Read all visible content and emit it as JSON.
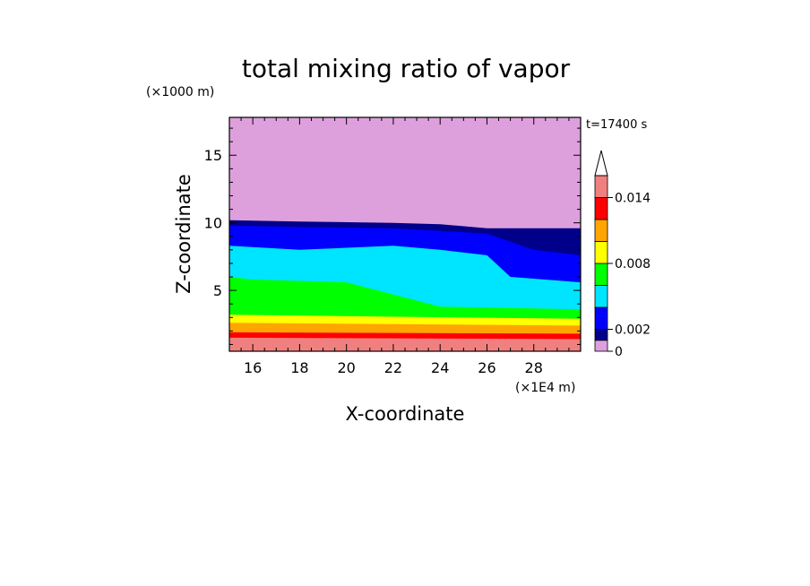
{
  "chart_data": {
    "type": "contour",
    "title": "total mixing ratio of vapor",
    "xlabel": "X-coordinate",
    "ylabel": "Z-coordinate",
    "x_unit": "(×1E4 m)",
    "y_unit": "(×1000 m)",
    "time_label": "t=17400 s",
    "xlim": [
      15,
      30
    ],
    "ylim": [
      0.5,
      17.8
    ],
    "x_ticks": [
      16,
      18,
      20,
      22,
      24,
      26,
      28
    ],
    "y_ticks": [
      5,
      10,
      15
    ],
    "colorbar": {
      "levels": [
        0,
        0.001,
        0.002,
        0.004,
        0.006,
        0.008,
        0.01,
        0.012,
        0.014,
        0.016
      ],
      "colors": [
        "#dda0dd",
        "#00008b",
        "#0000ff",
        "#00e5ff",
        "#00ff00",
        "#ffff00",
        "#ffa500",
        "#ff0000",
        "#f08080",
        "#ffc0cb"
      ],
      "tick_labels": [
        {
          "value": 0,
          "label": "0"
        },
        {
          "value": 0.002,
          "label": "0.002"
        },
        {
          "value": 0.008,
          "label": "0.008"
        },
        {
          "value": 0.014,
          "label": "0.014"
        }
      ],
      "extend": "max"
    },
    "bands": [
      {
        "name": "pink",
        "color": "#ffc0cb",
        "boundary_x": [
          15,
          30
        ],
        "boundary_z": [
          1.1,
          1.1
        ]
      },
      {
        "name": "lightcoral",
        "color": "#f08080",
        "boundary_x": [
          15,
          30
        ],
        "boundary_z": [
          1.5,
          1.4
        ]
      },
      {
        "name": "red",
        "color": "#ff0000",
        "boundary_x": [
          15,
          30
        ],
        "boundary_z": [
          1.9,
          1.8
        ]
      },
      {
        "name": "orange",
        "color": "#ffa500",
        "boundary_x": [
          15,
          30
        ],
        "boundary_z": [
          2.6,
          2.4
        ]
      },
      {
        "name": "yellow",
        "color": "#ffff00",
        "boundary_x": [
          15,
          30
        ],
        "boundary_z": [
          3.2,
          2.9
        ]
      },
      {
        "name": "green",
        "color": "#00ff00",
        "boundary_x": [
          15,
          16,
          18,
          20,
          24,
          27,
          30
        ],
        "boundary_z": [
          6.0,
          5.8,
          5.7,
          5.6,
          3.8,
          3.7,
          3.6
        ]
      },
      {
        "name": "cyan",
        "color": "#00e5ff",
        "boundary_x": [
          15,
          18,
          22,
          24,
          26,
          27,
          30
        ],
        "boundary_z": [
          8.3,
          8.0,
          8.3,
          8.0,
          7.6,
          6.0,
          5.6
        ]
      },
      {
        "name": "blue",
        "color": "#0000ff",
        "boundary_x": [
          15,
          18,
          22,
          24,
          26,
          28,
          30
        ],
        "boundary_z": [
          9.8,
          9.7,
          9.6,
          9.4,
          9.2,
          8.0,
          7.6
        ]
      },
      {
        "name": "darkblue",
        "color": "#00008b",
        "boundary_x": [
          15,
          18,
          22,
          24,
          26,
          28,
          30
        ],
        "boundary_z": [
          10.2,
          10.1,
          10.0,
          9.9,
          9.6,
          9.6,
          9.6
        ]
      },
      {
        "name": "plum",
        "color": "#dda0dd",
        "boundary_x": [
          15,
          30
        ],
        "boundary_z": [
          17.8,
          17.8
        ]
      }
    ]
  }
}
